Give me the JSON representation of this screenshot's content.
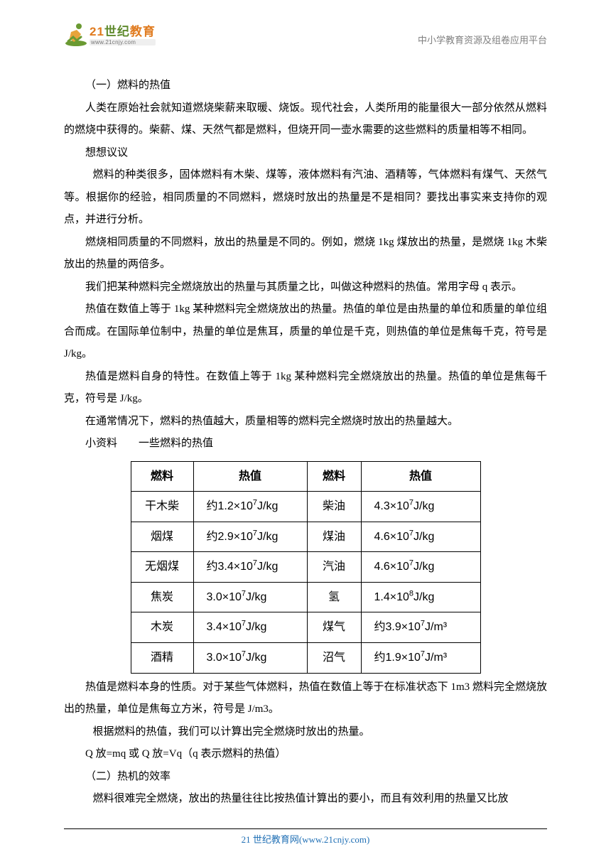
{
  "header": {
    "logo": {
      "century_prefix": "21",
      "century_suffix": "世纪",
      "brand_rest": "教育",
      "url": "www.21cnjy.com"
    },
    "right_text": "中小学教育资源及组卷应用平台"
  },
  "body": {
    "p1": "（一）燃料的热值",
    "p2": "人类在原始社会就知道燃烧柴薪来取暖、烧饭。现代社会，人类所用的能量很大一部分依然从燃料的燃烧中获得的。柴薪、煤、天然气都是燃料，但烧开同一壶水需要的这些燃料的质量相等不相同。",
    "p3": "想想议议",
    "p4": "燃料的种类很多，固体燃料有木柴、煤等，液体燃料有汽油、酒精等，气体燃料有煤气、天然气等。根据你的经验，相同质量的不同燃料，燃烧时放出的热量是不是相同？要找出事实来支持你的观点，并进行分析。",
    "p5": "燃烧相同质量的不同燃料，放出的热量是不同的。例如，燃烧 1kg 煤放出的热量，是燃烧 1kg 木柴放出的热量的两倍多。",
    "p6": "我们把某种燃料完全燃烧放出的热量与其质量之比，叫做这种燃料的热值。常用字母 q 表示。",
    "p7": "热值在数值上等于 1kg 某种燃料完全燃烧放出的热量。热值的单位是由热量的单位和质量的单位组合而成。在国际单位制中，热量的单位是焦耳，质量的单位是千克，则热值的单位是焦每千克，符号是 J/kg。",
    "p8": "热值是燃料自身的特性。在数值上等于 1kg 某种燃料完全燃烧放出的热量。热值的单位是焦每千克，符号是 J/kg。",
    "p9": "在通常情况下，燃料的热值越大，质量相等的燃料完全燃烧时放出的热量越大。",
    "p10": "小资料　　一些燃料的热值",
    "p11": "热值是燃料本身的性质。对于某些气体燃料，热值在数值上等于在标准状态下 1m3 燃料完全燃烧放出的热量，单位是焦每立方米，符号是 J/m3。",
    "p12": "根据燃料的热值，我们可以计算出完全燃烧时放出的热量。",
    "p13": "Q 放=mq 或 Q 放=Vq（q 表示燃料的热值）",
    "p14": "（二）热机的效率",
    "p15": "燃料很难完全燃烧，放出的热量往往比按热值计算出的要小，而且有效利用的热量又比放"
  },
  "table": {
    "headers": [
      "燃料",
      "热值",
      "燃料",
      "热值"
    ],
    "rows": [
      {
        "f1": "干木柴",
        "v1_pre": "约1.2×10",
        "v1_exp": "7",
        "v1_unit": "J/kg",
        "f2": "柴油",
        "v2_pre": "4.3×10",
        "v2_exp": "7",
        "v2_unit": "J/kg"
      },
      {
        "f1": "烟煤",
        "v1_pre": "约2.9×10",
        "v1_exp": "7",
        "v1_unit": "J/kg",
        "f2": "煤油",
        "v2_pre": "4.6×10",
        "v2_exp": "7",
        "v2_unit": "J/kg"
      },
      {
        "f1": "无烟煤",
        "v1_pre": "约3.4×10",
        "v1_exp": "7",
        "v1_unit": "J/kg",
        "f2": "汽油",
        "v2_pre": "4.6×10",
        "v2_exp": "7",
        "v2_unit": "J/kg"
      },
      {
        "f1": "焦炭",
        "v1_pre": "3.0×10",
        "v1_exp": "7",
        "v1_unit": "J/kg",
        "f2": "氢",
        "v2_pre": "1.4×10",
        "v2_exp": "8",
        "v2_unit": "J/kg"
      },
      {
        "f1": "木炭",
        "v1_pre": "3.4×10",
        "v1_exp": "7",
        "v1_unit": "J/kg",
        "f2": "煤气",
        "v2_pre": "约3.9×10",
        "v2_exp": "7",
        "v2_unit": "J/m³"
      },
      {
        "f1": "酒精",
        "v1_pre": "3.0×10",
        "v1_exp": "7",
        "v1_unit": "J/kg",
        "f2": "沼气",
        "v2_pre": "约1.9×10",
        "v2_exp": "7",
        "v2_unit": "J/m³"
      }
    ],
    "border_color": "#000000",
    "header_bg": "#ffffff"
  },
  "footer": {
    "text_prefix": "21 世纪教育网",
    "text_paren": "(www.21cnjy.com)"
  },
  "colors": {
    "logo_green": "#5f8a2d",
    "logo_orange": "#e07b1f",
    "header_gray": "#808080",
    "link_blue": "#1f6fb5",
    "text": "#000000",
    "background": "#ffffff"
  }
}
